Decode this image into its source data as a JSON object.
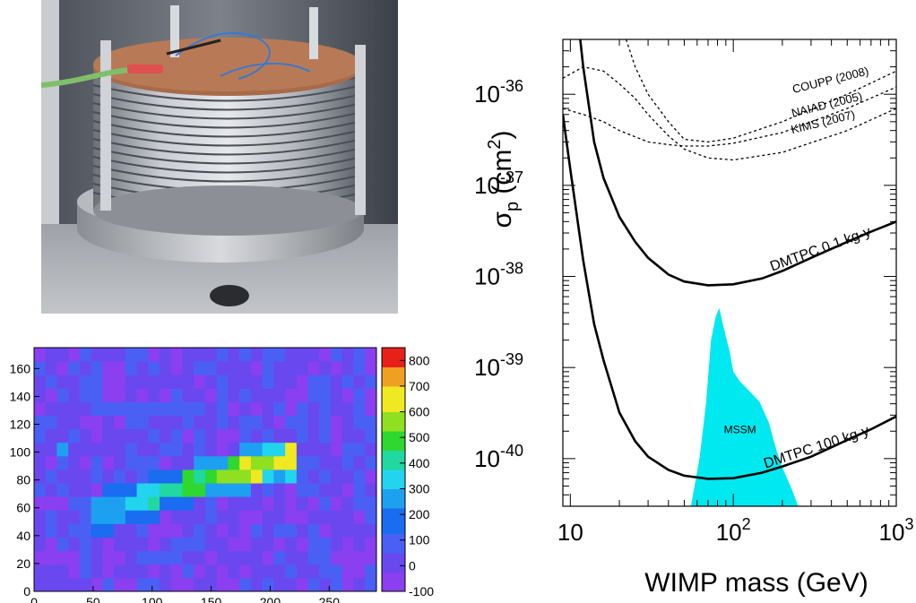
{
  "photo": {
    "subject": "stacked-ring-detector-photo"
  },
  "chart_data": [
    {
      "type": "heatmap",
      "title": "",
      "xlabel": "",
      "ylabel": "",
      "xlim": [
        0,
        290
      ],
      "ylim": [
        0,
        175
      ],
      "x_ticks": [
        0,
        50,
        100,
        150,
        200,
        250
      ],
      "y_ticks": [
        0,
        20,
        40,
        60,
        80,
        100,
        120,
        140,
        160
      ],
      "x_tick_labels": [
        "0",
        "50",
        "100",
        "150",
        "200",
        "250"
      ],
      "y_tick_labels": [
        "0",
        "20",
        "40",
        "60",
        "80",
        "100",
        "120",
        "140",
        "160"
      ],
      "colorbar": {
        "range": [
          -100,
          850
        ],
        "ticks": [
          -100,
          0,
          100,
          200,
          300,
          400,
          500,
          600,
          700,
          800
        ],
        "tick_labels": [
          "-100",
          "0",
          "100",
          "200",
          "300",
          "400",
          "500",
          "600",
          "700",
          "800"
        ],
        "placement": "right"
      },
      "track": {
        "description_points": [
          [
            50,
            55
          ],
          [
            100,
            68
          ],
          [
            150,
            82
          ],
          [
            200,
            92
          ],
          [
            225,
            98
          ]
        ],
        "peak_value": 820
      },
      "colors": {
        "low": "#8a3ff0",
        "mid_low": "#1a6cf0",
        "mid": "#22d4ee",
        "mid_high": "#2ed82e",
        "high": "#f0e820",
        "peak": "#e8201a"
      }
    },
    {
      "type": "line",
      "title": "",
      "xlabel": "WIMP mass (GeV)",
      "ylabel_base": "σ",
      "ylabel_sub": "p",
      "ylabel_unit_open": " (cm",
      "ylabel_unit_sup": "2",
      "ylabel_unit_close": ")",
      "x_scale": "log",
      "y_scale": "log",
      "xlim": [
        9,
        1000
      ],
      "ylim": [
        3e-41,
        4e-36
      ],
      "x_tick_labels": [
        {
          "value": 10,
          "base": "10",
          "exp": ""
        },
        {
          "value": 100,
          "base": "10",
          "exp": "2"
        },
        {
          "value": 1000,
          "base": "10",
          "exp": "3"
        }
      ],
      "y_tick_labels": [
        {
          "value": 1e-36,
          "base": "10",
          "exp": "-36"
        },
        {
          "value": 1e-37,
          "base": "10",
          "exp": "-37"
        },
        {
          "value": 1e-38,
          "base": "10",
          "exp": "-38"
        },
        {
          "value": 1e-39,
          "base": "10",
          "exp": "-39"
        },
        {
          "value": 1e-40,
          "base": "10",
          "exp": "-40"
        }
      ],
      "series": [
        {
          "name": "COUPP (2008)",
          "style": "dashed",
          "x": [
            22,
            25,
            30,
            40,
            50,
            70,
            100,
            200,
            500,
            1000
          ],
          "y": [
            4e-36,
            2e-36,
            1e-36,
            5e-37,
            3.2e-37,
            3e-37,
            3.3e-37,
            5e-37,
            1e-36,
            1.8e-36
          ]
        },
        {
          "name": "NAIAD (2005)",
          "style": "dashed",
          "x": [
            9,
            12,
            16,
            20,
            25,
            30,
            40,
            50,
            70,
            100,
            200,
            500,
            1000
          ],
          "y": [
            1.5e-36,
            2e-36,
            1.8e-36,
            1.3e-36,
            9e-37,
            6e-37,
            3.5e-37,
            2.5e-37,
            2e-37,
            1.9e-37,
            2.3e-37,
            4e-37,
            7e-37
          ]
        },
        {
          "name": "KIMS (2007)",
          "style": "dashed",
          "x": [
            9,
            12,
            16,
            20,
            30,
            40,
            50,
            70,
            100,
            200,
            500,
            1000
          ],
          "y": [
            7e-37,
            6e-37,
            5e-37,
            4e-37,
            3e-37,
            2.8e-37,
            2.7e-37,
            2.7e-37,
            2.9e-37,
            3.8e-37,
            7e-37,
            1.2e-36
          ]
        },
        {
          "name": "DMTPC 0.1 kg-y",
          "style": "solid",
          "x": [
            11.5,
            12,
            14,
            16,
            20,
            25,
            30,
            40,
            50,
            70,
            100,
            150,
            200,
            300,
            500,
            700,
            1000
          ],
          "y": [
            4e-36,
            2e-36,
            3e-37,
            1.2e-37,
            4.5e-38,
            2.4e-38,
            1.6e-38,
            1.05e-38,
            8.8e-39,
            8e-39,
            8.2e-39,
            9.5e-39,
            1.15e-38,
            1.6e-38,
            2.4e-38,
            3.1e-38,
            4e-38
          ]
        },
        {
          "name": "DMTPC 100 kg-y",
          "style": "solid",
          "x": [
            9,
            10,
            12,
            14,
            16,
            20,
            25,
            30,
            40,
            50,
            70,
            100,
            150,
            200,
            300,
            500,
            700,
            1000
          ],
          "y": [
            6e-37,
            1.5e-37,
            1.5e-38,
            3e-39,
            1.2e-39,
            3.2e-40,
            1.55e-40,
            1.05e-40,
            7.5e-41,
            6.5e-41,
            6e-41,
            6.1e-41,
            7e-41,
            8.2e-41,
            1.05e-40,
            1.6e-40,
            2.1e-40,
            2.9e-40
          ]
        }
      ],
      "region": {
        "name": "MSSM",
        "color": "#00e8f0",
        "x": [
          55,
          62,
          68,
          73,
          78,
          82,
          85,
          90,
          95,
          100,
          110,
          120,
          135,
          145,
          155,
          165,
          175,
          185,
          200,
          230,
          250,
          55
        ],
        "y": [
          3e-41,
          1e-40,
          4e-40,
          2e-39,
          3.6e-39,
          4.5e-39,
          3.4e-39,
          2.2e-39,
          1.5e-39,
          9e-40,
          7e-40,
          6e-40,
          4.8e-40,
          4.2e-40,
          3.2e-40,
          2.5e-40,
          1.7e-40,
          1.2e-40,
          8e-41,
          4.5e-41,
          3e-41,
          3e-41
        ]
      },
      "labels": [
        {
          "text": "COUPP (2008)",
          "x": 400,
          "y": 1.3e-36
        },
        {
          "text": "NAIAD (2005)",
          "x": 380,
          "y": 7e-37
        },
        {
          "text": "KIMS (2007)",
          "x": 360,
          "y": 4.5e-37
        },
        {
          "text": "DMTPC 0.1 kg-y",
          "x": 350,
          "y": 1.8e-38
        },
        {
          "text": "DMTPC 100 kg-y",
          "x": 330,
          "y": 1.2e-40
        },
        {
          "text": "MSSM",
          "x": 110,
          "y": 1.9e-40
        }
      ],
      "grid": false,
      "legend": "none"
    }
  ]
}
